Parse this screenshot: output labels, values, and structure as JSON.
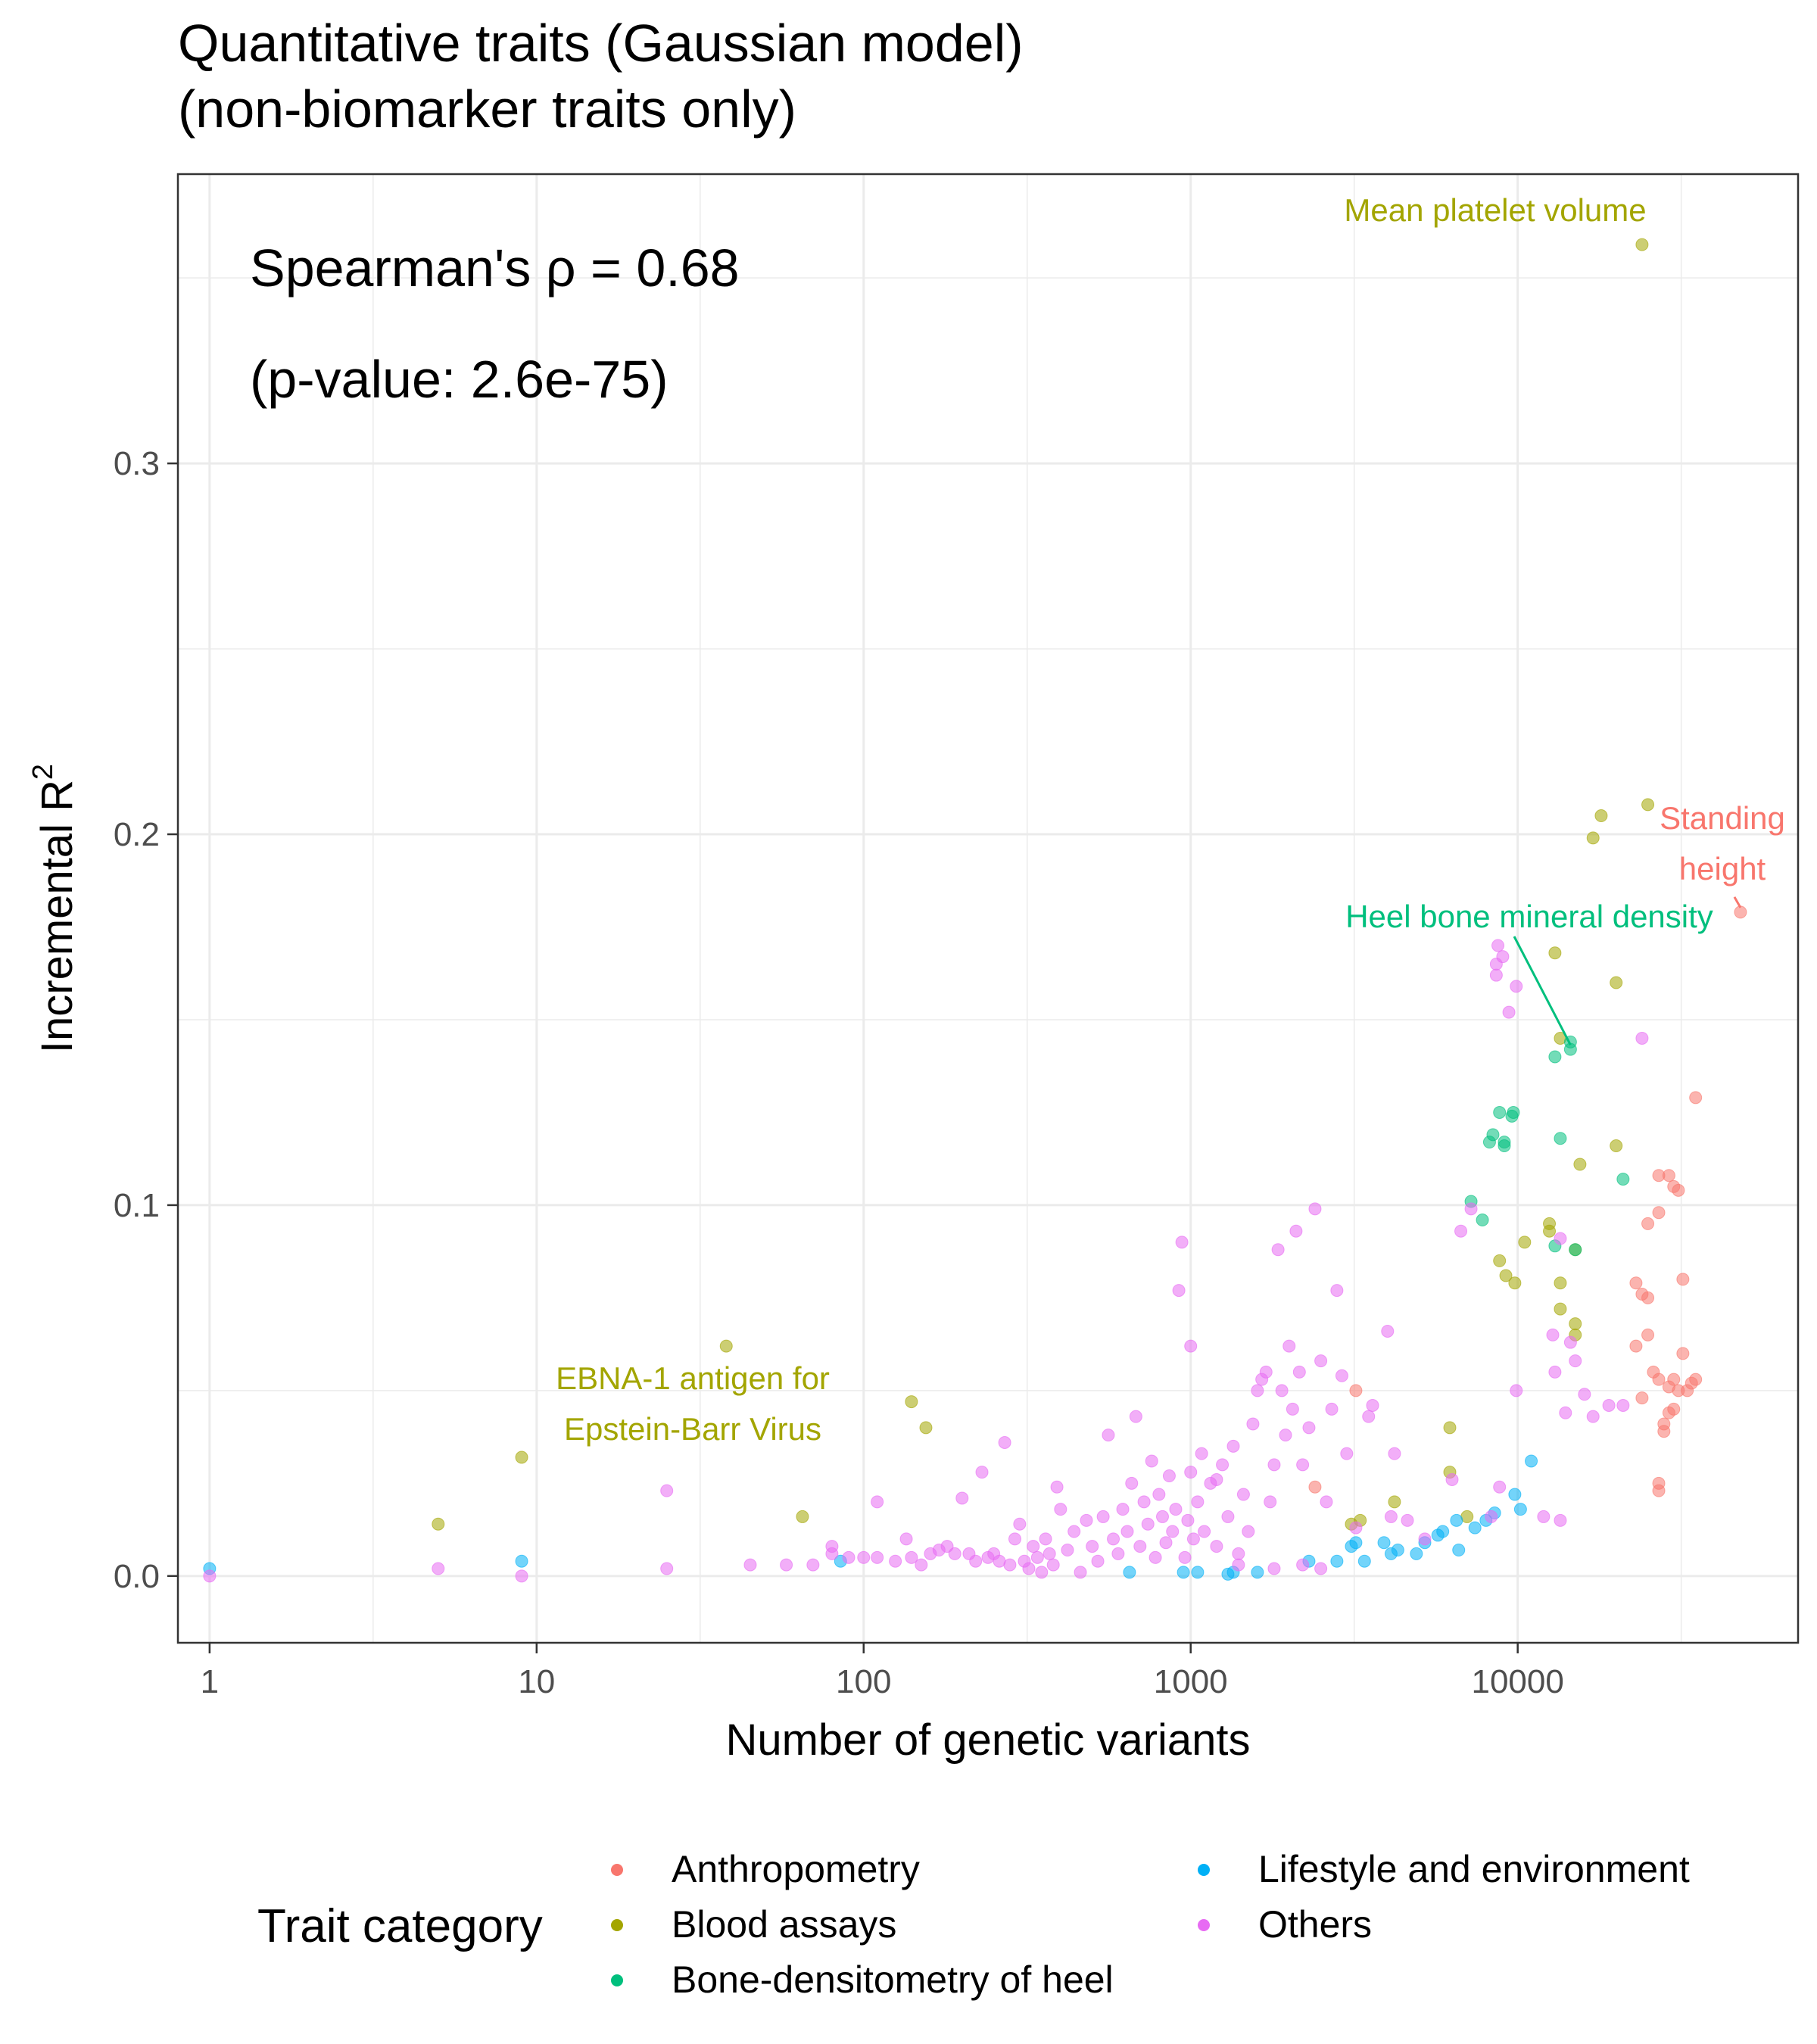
{
  "chart_data": {
    "type": "scatter",
    "title": "Quantitative traits (Gaussian model)",
    "subtitle": "(non-biomarker traits only)",
    "xlabel": "Number of genetic variants",
    "ylabel": "Incremental R",
    "ylabel_superscript": "2",
    "x_scale": "log10",
    "xlim": [
      0.8,
      72000
    ],
    "ylim": [
      -0.018,
      0.378
    ],
    "x_ticks": [
      1,
      10,
      100,
      1000,
      10000
    ],
    "x_tick_labels": [
      "1",
      "10",
      "100",
      "1000",
      "10000"
    ],
    "y_ticks": [
      0.0,
      0.1,
      0.2,
      0.3
    ],
    "y_tick_labels": [
      "0.0",
      "0.1",
      "0.2",
      "0.3"
    ],
    "grid": true,
    "stat_line1": "Spearman's ρ = 0.68",
    "stat_line2": "(p-value: 2.6e-75)",
    "legend": {
      "title": "Trait category",
      "position": "bottom",
      "entries": [
        {
          "name": "Anthropometry",
          "color": "#F8766D"
        },
        {
          "name": "Blood assays",
          "color": "#A3A500"
        },
        {
          "name": "Bone-densitometry of heel",
          "color": "#00BF7D"
        },
        {
          "name": "Lifestyle and environment",
          "color": "#00B0F6"
        },
        {
          "name": "Others",
          "color": "#E76BF3"
        }
      ]
    },
    "annotations": [
      {
        "text": "Mean platelet volume",
        "series": "Blood assays",
        "x": 24000,
        "y": 0.359
      },
      {
        "text": "Standing",
        "text2": "height",
        "series": "Anthropometry",
        "x": 48000,
        "y": 0.179
      },
      {
        "text": "Heel bone mineral density",
        "series": "Bone-densitometry of heel",
        "x": 14500,
        "y": 0.142
      },
      {
        "text": "EBNA-1 antigen for",
        "text2": "Epstein-Barr Virus",
        "series": "Blood assays",
        "x": 38,
        "y": 0.062
      }
    ],
    "series": [
      {
        "name": "Anthropometry",
        "points": [
          [
            48000,
            0.179
          ],
          [
            35000,
            0.129
          ],
          [
            27000,
            0.108
          ],
          [
            29000,
            0.108
          ],
          [
            30000,
            0.105
          ],
          [
            31000,
            0.104
          ],
          [
            25000,
            0.095
          ],
          [
            27000,
            0.098
          ],
          [
            32000,
            0.08
          ],
          [
            23000,
            0.079
          ],
          [
            24000,
            0.076
          ],
          [
            25000,
            0.075
          ],
          [
            32000,
            0.06
          ],
          [
            23000,
            0.062
          ],
          [
            25000,
            0.065
          ],
          [
            26000,
            0.055
          ],
          [
            27000,
            0.053
          ],
          [
            29000,
            0.051
          ],
          [
            30000,
            0.053
          ],
          [
            31000,
            0.05
          ],
          [
            33000,
            0.05
          ],
          [
            34000,
            0.052
          ],
          [
            35000,
            0.053
          ],
          [
            24000,
            0.048
          ],
          [
            29000,
            0.044
          ],
          [
            30000,
            0.045
          ],
          [
            28000,
            0.041
          ],
          [
            28000,
            0.039
          ],
          [
            27000,
            0.025
          ],
          [
            27000,
            0.023
          ],
          [
            3200,
            0.05
          ],
          [
            2400,
            0.024
          ]
        ]
      },
      {
        "name": "Blood assays",
        "points": [
          [
            24000,
            0.359
          ],
          [
            25000,
            0.208
          ],
          [
            18000,
            0.205
          ],
          [
            17000,
            0.199
          ],
          [
            20000,
            0.16
          ],
          [
            13000,
            0.168
          ],
          [
            13500,
            0.145
          ],
          [
            20000,
            0.116
          ],
          [
            15500,
            0.111
          ],
          [
            12500,
            0.095
          ],
          [
            12500,
            0.093
          ],
          [
            10500,
            0.09
          ],
          [
            15000,
            0.088
          ],
          [
            8800,
            0.085
          ],
          [
            9200,
            0.081
          ],
          [
            9800,
            0.079
          ],
          [
            13500,
            0.079
          ],
          [
            13500,
            0.072
          ],
          [
            15000,
            0.068
          ],
          [
            15000,
            0.065
          ],
          [
            38,
            0.062
          ],
          [
            140,
            0.047
          ],
          [
            155,
            0.04
          ],
          [
            9,
            0.032
          ],
          [
            65,
            0.016
          ],
          [
            5,
            0.014
          ],
          [
            6200,
            0.04
          ],
          [
            6200,
            0.028
          ],
          [
            4200,
            0.02
          ],
          [
            3100,
            0.014
          ],
          [
            3300,
            0.015
          ],
          [
            7000,
            0.016
          ]
        ]
      },
      {
        "name": "Bone-densitometry of heel",
        "points": [
          [
            14500,
            0.142
          ],
          [
            14500,
            0.144
          ],
          [
            13000,
            0.14
          ],
          [
            8800,
            0.125
          ],
          [
            9600,
            0.124
          ],
          [
            9700,
            0.125
          ],
          [
            8400,
            0.119
          ],
          [
            8200,
            0.117
          ],
          [
            9100,
            0.117
          ],
          [
            9100,
            0.116
          ],
          [
            13500,
            0.118
          ],
          [
            21000,
            0.107
          ],
          [
            7200,
            0.101
          ],
          [
            7800,
            0.096
          ],
          [
            13000,
            0.089
          ],
          [
            15000,
            0.088
          ]
        ]
      },
      {
        "name": "Lifestyle and environment",
        "points": [
          [
            1,
            0.002
          ],
          [
            9,
            0.004
          ],
          [
            85,
            0.004
          ],
          [
            650,
            0.001
          ],
          [
            950,
            0.001
          ],
          [
            1050,
            0.001
          ],
          [
            1300,
            0.0005
          ],
          [
            1350,
            0.001
          ],
          [
            1600,
            0.001
          ],
          [
            2300,
            0.004
          ],
          [
            2800,
            0.004
          ],
          [
            3100,
            0.008
          ],
          [
            3200,
            0.009
          ],
          [
            3400,
            0.004
          ],
          [
            3900,
            0.009
          ],
          [
            4100,
            0.006
          ],
          [
            4300,
            0.007
          ],
          [
            4900,
            0.006
          ],
          [
            5200,
            0.009
          ],
          [
            5700,
            0.011
          ],
          [
            5900,
            0.012
          ],
          [
            6500,
            0.015
          ],
          [
            6600,
            0.007
          ],
          [
            7400,
            0.013
          ],
          [
            8000,
            0.015
          ],
          [
            8500,
            0.017
          ],
          [
            9800,
            0.022
          ],
          [
            10200,
            0.018
          ],
          [
            11000,
            0.031
          ]
        ]
      },
      {
        "name": "Others",
        "points": [
          [
            1,
            0.0
          ],
          [
            5,
            0.002
          ],
          [
            9,
            0.0
          ],
          [
            25,
            0.002
          ],
          [
            25,
            0.023
          ],
          [
            45,
            0.003
          ],
          [
            58,
            0.003
          ],
          [
            70,
            0.003
          ],
          [
            80,
            0.008
          ],
          [
            80,
            0.006
          ],
          [
            90,
            0.005
          ],
          [
            100,
            0.005
          ],
          [
            110,
            0.005
          ],
          [
            110,
            0.02
          ],
          [
            125,
            0.004
          ],
          [
            135,
            0.01
          ],
          [
            140,
            0.005
          ],
          [
            150,
            0.003
          ],
          [
            160,
            0.006
          ],
          [
            170,
            0.007
          ],
          [
            180,
            0.008
          ],
          [
            190,
            0.006
          ],
          [
            200,
            0.021
          ],
          [
            210,
            0.006
          ],
          [
            220,
            0.004
          ],
          [
            230,
            0.028
          ],
          [
            240,
            0.005
          ],
          [
            250,
            0.006
          ],
          [
            260,
            0.004
          ],
          [
            270,
            0.036
          ],
          [
            280,
            0.003
          ],
          [
            290,
            0.01
          ],
          [
            300,
            0.014
          ],
          [
            310,
            0.004
          ],
          [
            320,
            0.002
          ],
          [
            330,
            0.008
          ],
          [
            340,
            0.005
          ],
          [
            350,
            0.001
          ],
          [
            360,
            0.01
          ],
          [
            370,
            0.006
          ],
          [
            380,
            0.003
          ],
          [
            390,
            0.024
          ],
          [
            400,
            0.018
          ],
          [
            420,
            0.007
          ],
          [
            440,
            0.012
          ],
          [
            460,
            0.001
          ],
          [
            480,
            0.015
          ],
          [
            500,
            0.008
          ],
          [
            520,
            0.004
          ],
          [
            540,
            0.016
          ],
          [
            560,
            0.038
          ],
          [
            580,
            0.01
          ],
          [
            600,
            0.006
          ],
          [
            620,
            0.018
          ],
          [
            640,
            0.012
          ],
          [
            660,
            0.025
          ],
          [
            680,
            0.043
          ],
          [
            700,
            0.008
          ],
          [
            720,
            0.02
          ],
          [
            740,
            0.014
          ],
          [
            760,
            0.031
          ],
          [
            780,
            0.005
          ],
          [
            800,
            0.022
          ],
          [
            820,
            0.016
          ],
          [
            840,
            0.009
          ],
          [
            860,
            0.027
          ],
          [
            880,
            0.012
          ],
          [
            900,
            0.018
          ],
          [
            920,
            0.077
          ],
          [
            940,
            0.09
          ],
          [
            960,
            0.005
          ],
          [
            980,
            0.015
          ],
          [
            1000,
            0.062
          ],
          [
            1000,
            0.028
          ],
          [
            1020,
            0.01
          ],
          [
            1050,
            0.02
          ],
          [
            1080,
            0.033
          ],
          [
            1100,
            0.012
          ],
          [
            1150,
            0.025
          ],
          [
            1200,
            0.008
          ],
          [
            1250,
            0.03
          ],
          [
            1300,
            0.016
          ],
          [
            1350,
            0.035
          ],
          [
            1400,
            0.006
          ],
          [
            1450,
            0.022
          ],
          [
            1500,
            0.012
          ],
          [
            1550,
            0.041
          ],
          [
            1600,
            0.05
          ],
          [
            1650,
            0.053
          ],
          [
            1700,
            0.055
          ],
          [
            1750,
            0.02
          ],
          [
            1800,
            0.03
          ],
          [
            1850,
            0.088
          ],
          [
            1900,
            0.05
          ],
          [
            1950,
            0.038
          ],
          [
            2000,
            0.062
          ],
          [
            2050,
            0.045
          ],
          [
            2100,
            0.093
          ],
          [
            2150,
            0.055
          ],
          [
            2200,
            0.03
          ],
          [
            2300,
            0.04
          ],
          [
            2400,
            0.099
          ],
          [
            2500,
            0.058
          ],
          [
            2600,
            0.02
          ],
          [
            2700,
            0.045
          ],
          [
            2800,
            0.077
          ],
          [
            2900,
            0.054
          ],
          [
            3000,
            0.033
          ],
          [
            3200,
            0.013
          ],
          [
            3500,
            0.043
          ],
          [
            4000,
            0.066
          ],
          [
            4200,
            0.033
          ],
          [
            4600,
            0.015
          ],
          [
            5200,
            0.01
          ],
          [
            6300,
            0.026
          ],
          [
            6700,
            0.093
          ],
          [
            7200,
            0.099
          ],
          [
            8300,
            0.016
          ],
          [
            8600,
            0.165
          ],
          [
            8700,
            0.17
          ],
          [
            9000,
            0.167
          ],
          [
            8600,
            0.162
          ],
          [
            9400,
            0.152
          ],
          [
            9900,
            0.159
          ],
          [
            8800,
            0.024
          ],
          [
            9900,
            0.05
          ],
          [
            12000,
            0.016
          ],
          [
            13000,
            0.055
          ],
          [
            13500,
            0.015
          ],
          [
            14000,
            0.044
          ],
          [
            14500,
            0.063
          ],
          [
            15000,
            0.058
          ],
          [
            16000,
            0.049
          ],
          [
            17000,
            0.043
          ],
          [
            19000,
            0.046
          ],
          [
            21000,
            0.046
          ],
          [
            24000,
            0.145
          ],
          [
            13500,
            0.091
          ],
          [
            12800,
            0.065
          ],
          [
            1400,
            0.003
          ],
          [
            1800,
            0.002
          ],
          [
            2200,
            0.003
          ],
          [
            2500,
            0.002
          ],
          [
            3600,
            0.046
          ],
          [
            4100,
            0.016
          ],
          [
            1200,
            0.026
          ]
        ]
      }
    ]
  }
}
